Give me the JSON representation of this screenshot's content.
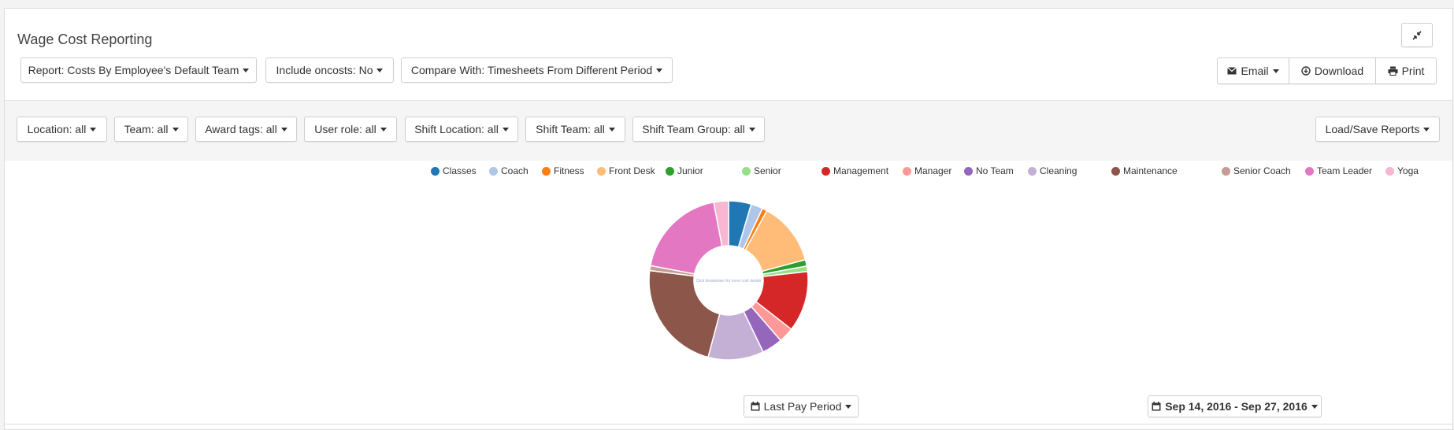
{
  "header": {
    "title": "Wage Cost Reporting",
    "report_label": "Report: Costs By Employee's Default Team",
    "oncosts_label": "Include oncosts: No",
    "compare_label": "Compare With: Timesheets From Different Period",
    "email_label": "Email",
    "download_label": "Download",
    "print_label": "Print"
  },
  "filters": {
    "location": "Location: all",
    "team": "Team: all",
    "award_tags": "Award tags: all",
    "user_role": "User role: all",
    "shift_location": "Shift Location: all",
    "shift_team": "Shift Team: all",
    "shift_team_group": "Shift Team Group: all",
    "load_save": "Load/Save Reports"
  },
  "footer": {
    "period_label": "Last Pay Period",
    "date_range": "Sep 14, 2016 - Sep 27, 2016"
  },
  "chart_data": {
    "type": "pie",
    "variant": "donut",
    "center_label": "Click breakdown for more cost details",
    "legend_position": "top",
    "categories": [
      "Classes",
      "Coach",
      "Fitness",
      "Front Desk",
      "Junior",
      "Senior",
      "Management",
      "Manager",
      "No Team",
      "Cleaning",
      "Maintenance",
      "Senior Coach",
      "Team Leader",
      "Yoga"
    ],
    "values": [
      4.6,
      2.4,
      1.0,
      12.8,
      1.3,
      1.1,
      12.3,
      3.1,
      4.2,
      11.3,
      22.8,
      1.0,
      19.0,
      3.0
    ],
    "colors": [
      "#1f77b4",
      "#aec7e8",
      "#ff7f0e",
      "#ffbb78",
      "#2ca02c",
      "#98df8a",
      "#d62728",
      "#ff9896",
      "#9467bd",
      "#c5b0d5",
      "#8c564b",
      "#c49c94",
      "#e377c2",
      "#f7b6d2"
    ]
  }
}
